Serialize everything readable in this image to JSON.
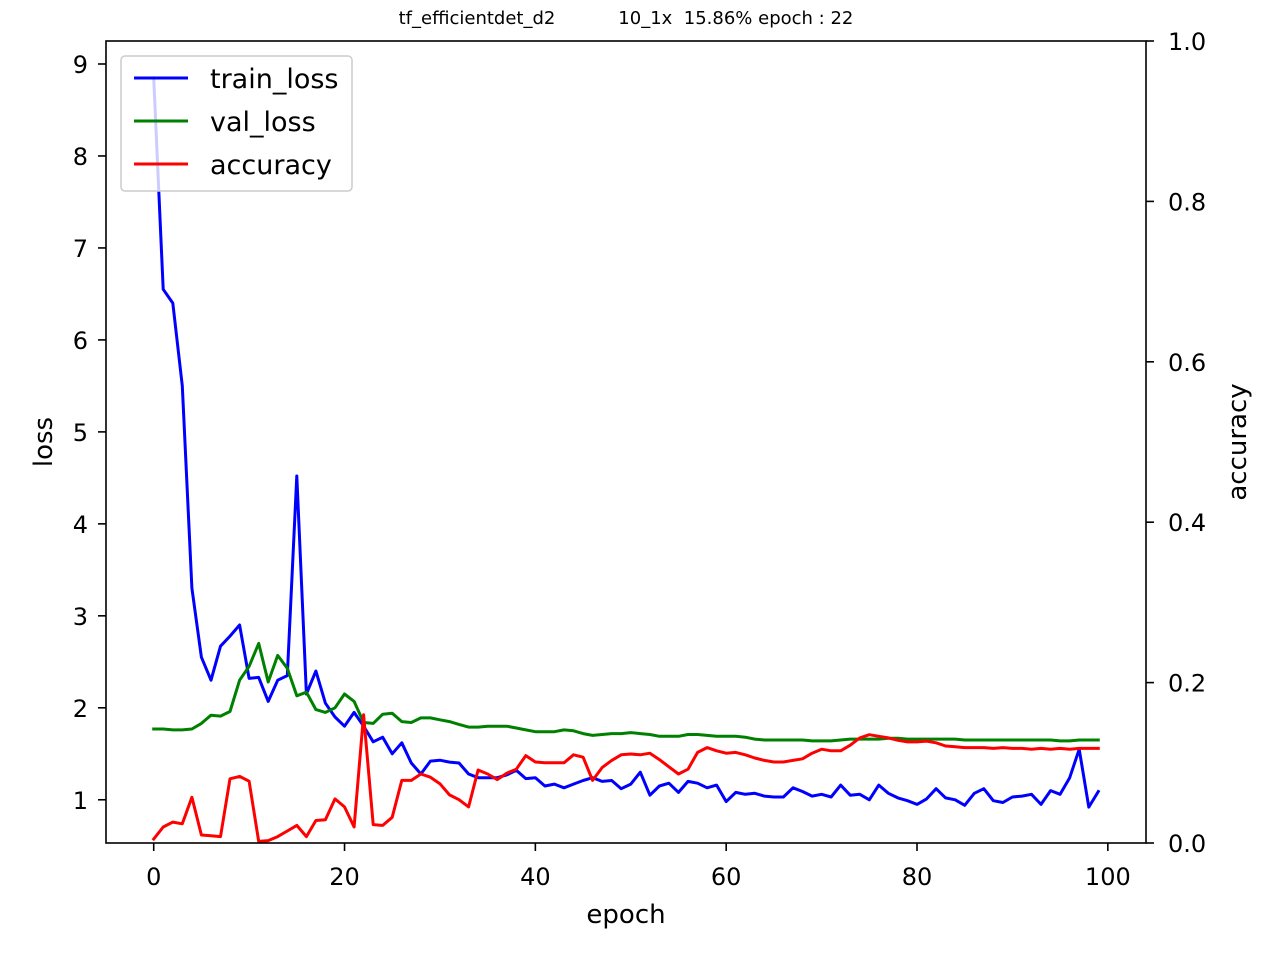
{
  "chart_data": {
    "type": "line",
    "title": "tf_efficientdet_d2           10_1x  15.86% epoch : 22",
    "xlabel": "epoch",
    "ylabel_left": "loss",
    "ylabel_right": "accuracy",
    "xlim": [
      -5,
      104
    ],
    "ylim_left": [
      0.53,
      9.25
    ],
    "ylim_right": [
      0.0,
      1.0
    ],
    "x_ticks": [
      0,
      20,
      40,
      60,
      80,
      100
    ],
    "y_ticks_left": [
      1,
      2,
      3,
      4,
      5,
      6,
      7,
      8,
      9
    ],
    "y_ticks_right": [
      0.0,
      0.2,
      0.4,
      0.6,
      0.8,
      1.0
    ],
    "y_tick_labels_right": [
      "0.0",
      "0.2",
      "0.4",
      "0.6",
      "0.8",
      "1.0"
    ],
    "grid": false,
    "legend_position": "top-left",
    "series": [
      {
        "name": "train_loss",
        "axis": "left",
        "color": "#0000ff",
        "x_start": 0,
        "values": [
          8.85,
          6.55,
          6.4,
          5.5,
          3.3,
          2.55,
          2.3,
          2.67,
          2.78,
          2.9,
          2.32,
          2.33,
          2.07,
          2.3,
          2.35,
          4.52,
          2.15,
          2.4,
          2.05,
          1.9,
          1.8,
          1.95,
          1.8,
          1.63,
          1.68,
          1.5,
          1.62,
          1.4,
          1.28,
          1.42,
          1.43,
          1.41,
          1.4,
          1.28,
          1.24,
          1.24,
          1.24,
          1.27,
          1.32,
          1.23,
          1.24,
          1.15,
          1.17,
          1.13,
          1.17,
          1.21,
          1.24,
          1.2,
          1.21,
          1.12,
          1.17,
          1.3,
          1.05,
          1.15,
          1.18,
          1.08,
          1.2,
          1.18,
          1.13,
          1.16,
          0.98,
          1.08,
          1.06,
          1.07,
          1.04,
          1.03,
          1.03,
          1.13,
          1.09,
          1.04,
          1.06,
          1.03,
          1.16,
          1.05,
          1.06,
          1.0,
          1.16,
          1.07,
          1.02,
          0.99,
          0.95,
          1.01,
          1.12,
          1.02,
          1.0,
          0.94,
          1.07,
          1.12,
          0.99,
          0.97,
          1.03,
          1.04,
          1.06,
          0.95,
          1.1,
          1.06,
          1.24,
          1.55,
          0.92,
          1.09
        ]
      },
      {
        "name": "val_loss",
        "axis": "left",
        "color": "#008000",
        "x_start": 0,
        "values": [
          1.77,
          1.77,
          1.76,
          1.76,
          1.77,
          1.83,
          1.92,
          1.91,
          1.96,
          2.3,
          2.45,
          2.7,
          2.28,
          2.57,
          2.43,
          2.13,
          2.17,
          1.98,
          1.95,
          2.0,
          2.15,
          2.07,
          1.84,
          1.83,
          1.93,
          1.94,
          1.85,
          1.84,
          1.89,
          1.89,
          1.87,
          1.85,
          1.82,
          1.79,
          1.79,
          1.8,
          1.8,
          1.8,
          1.78,
          1.76,
          1.74,
          1.74,
          1.74,
          1.76,
          1.75,
          1.72,
          1.7,
          1.71,
          1.72,
          1.72,
          1.73,
          1.72,
          1.71,
          1.69,
          1.69,
          1.69,
          1.71,
          1.71,
          1.7,
          1.69,
          1.69,
          1.69,
          1.68,
          1.66,
          1.65,
          1.65,
          1.65,
          1.65,
          1.65,
          1.64,
          1.64,
          1.64,
          1.65,
          1.66,
          1.66,
          1.66,
          1.66,
          1.67,
          1.67,
          1.66,
          1.66,
          1.66,
          1.66,
          1.66,
          1.66,
          1.65,
          1.65,
          1.65,
          1.65,
          1.65,
          1.65,
          1.65,
          1.65,
          1.65,
          1.65,
          1.64,
          1.64,
          1.65,
          1.65,
          1.65
        ]
      },
      {
        "name": "accuracy",
        "axis": "right",
        "color": "#ff0000",
        "x_start": 0,
        "values": [
          0.005,
          0.02,
          0.026,
          0.024,
          0.057,
          0.01,
          0.009,
          0.008,
          0.08,
          0.083,
          0.077,
          0.002,
          0.003,
          0.008,
          0.015,
          0.022,
          0.008,
          0.028,
          0.029,
          0.055,
          0.045,
          0.02,
          0.16,
          0.023,
          0.022,
          0.032,
          0.078,
          0.078,
          0.086,
          0.082,
          0.074,
          0.06,
          0.054,
          0.045,
          0.091,
          0.086,
          0.079,
          0.087,
          0.092,
          0.109,
          0.101,
          0.1,
          0.1,
          0.1,
          0.11,
          0.107,
          0.078,
          0.094,
          0.103,
          0.11,
          0.111,
          0.11,
          0.112,
          0.104,
          0.095,
          0.086,
          0.092,
          0.113,
          0.119,
          0.115,
          0.112,
          0.113,
          0.11,
          0.106,
          0.103,
          0.101,
          0.101,
          0.103,
          0.105,
          0.112,
          0.117,
          0.115,
          0.115,
          0.122,
          0.131,
          0.135,
          0.133,
          0.131,
          0.128,
          0.126,
          0.126,
          0.127,
          0.125,
          0.121,
          0.12,
          0.119,
          0.119,
          0.119,
          0.118,
          0.119,
          0.118,
          0.118,
          0.117,
          0.118,
          0.117,
          0.118,
          0.117,
          0.118,
          0.118,
          0.118
        ]
      }
    ]
  }
}
